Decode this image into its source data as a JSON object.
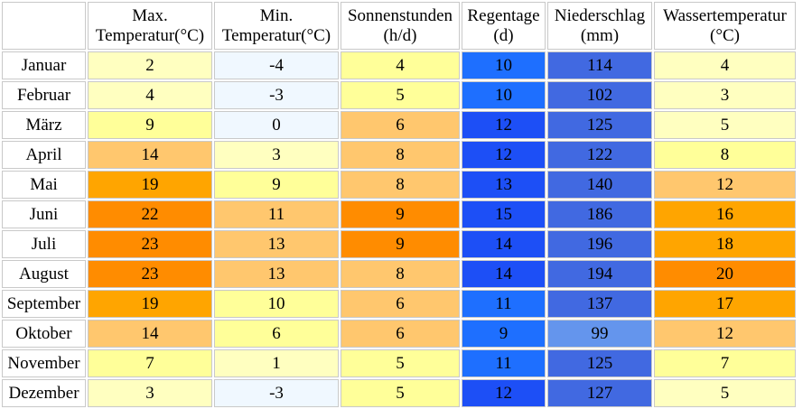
{
  "columns": [
    {
      "line1": "",
      "line2": ""
    },
    {
      "line1": "Max.",
      "line2": "Temperatur(°C)"
    },
    {
      "line1": "Min.",
      "line2": "Temperatur(°C)"
    },
    {
      "line1": "Sonnenstunden",
      "line2": "(h/d)"
    },
    {
      "line1": "Regentage",
      "line2": "(d)"
    },
    {
      "line1": "Niederschlag",
      "line2": "(mm)"
    },
    {
      "line1": "Wassertemperatur",
      "line2": "(°C)"
    }
  ],
  "rows": [
    {
      "month": "Januar",
      "cells": [
        {
          "value": "2",
          "color": "#ffffc0"
        },
        {
          "value": "-4",
          "color": "#f0f8ff"
        },
        {
          "value": "4",
          "color": "#ffff99"
        },
        {
          "value": "10",
          "color": "#1e6fff"
        },
        {
          "value": "114",
          "color": "#4169e1"
        },
        {
          "value": "4",
          "color": "#ffffc0"
        }
      ]
    },
    {
      "month": "Februar",
      "cells": [
        {
          "value": "4",
          "color": "#ffffc0"
        },
        {
          "value": "-3",
          "color": "#f0f8ff"
        },
        {
          "value": "5",
          "color": "#ffff99"
        },
        {
          "value": "10",
          "color": "#1e6fff"
        },
        {
          "value": "102",
          "color": "#4169e1"
        },
        {
          "value": "3",
          "color": "#ffffc0"
        }
      ]
    },
    {
      "month": "März",
      "cells": [
        {
          "value": "9",
          "color": "#ffff99"
        },
        {
          "value": "0",
          "color": "#f0f8ff"
        },
        {
          "value": "6",
          "color": "#ffc76e"
        },
        {
          "value": "12",
          "color": "#1d4ff6"
        },
        {
          "value": "125",
          "color": "#4169e1"
        },
        {
          "value": "5",
          "color": "#ffffc0"
        }
      ]
    },
    {
      "month": "April",
      "cells": [
        {
          "value": "14",
          "color": "#ffc76e"
        },
        {
          "value": "3",
          "color": "#ffffc0"
        },
        {
          "value": "8",
          "color": "#ffc76e"
        },
        {
          "value": "12",
          "color": "#1d4ff6"
        },
        {
          "value": "122",
          "color": "#4169e1"
        },
        {
          "value": "8",
          "color": "#ffff99"
        }
      ]
    },
    {
      "month": "Mai",
      "cells": [
        {
          "value": "19",
          "color": "#ffa500"
        },
        {
          "value": "9",
          "color": "#ffff99"
        },
        {
          "value": "8",
          "color": "#ffc76e"
        },
        {
          "value": "13",
          "color": "#1d4ff6"
        },
        {
          "value": "140",
          "color": "#4169e1"
        },
        {
          "value": "12",
          "color": "#ffc76e"
        }
      ]
    },
    {
      "month": "Juni",
      "cells": [
        {
          "value": "22",
          "color": "#ff8c00"
        },
        {
          "value": "11",
          "color": "#ffc76e"
        },
        {
          "value": "9",
          "color": "#ff8c00"
        },
        {
          "value": "15",
          "color": "#1d4ff6"
        },
        {
          "value": "186",
          "color": "#4169e1"
        },
        {
          "value": "16",
          "color": "#ffa500"
        }
      ]
    },
    {
      "month": "Juli",
      "cells": [
        {
          "value": "23",
          "color": "#ff8c00"
        },
        {
          "value": "13",
          "color": "#ffc76e"
        },
        {
          "value": "9",
          "color": "#ff8c00"
        },
        {
          "value": "14",
          "color": "#1d4ff6"
        },
        {
          "value": "196",
          "color": "#4169e1"
        },
        {
          "value": "18",
          "color": "#ffa500"
        }
      ]
    },
    {
      "month": "August",
      "cells": [
        {
          "value": "23",
          "color": "#ff8c00"
        },
        {
          "value": "13",
          "color": "#ffc76e"
        },
        {
          "value": "8",
          "color": "#ffc76e"
        },
        {
          "value": "14",
          "color": "#1d4ff6"
        },
        {
          "value": "194",
          "color": "#4169e1"
        },
        {
          "value": "20",
          "color": "#ff8c00"
        }
      ]
    },
    {
      "month": "September",
      "cells": [
        {
          "value": "19",
          "color": "#ffa500"
        },
        {
          "value": "10",
          "color": "#ffff99"
        },
        {
          "value": "6",
          "color": "#ffc76e"
        },
        {
          "value": "11",
          "color": "#1e6fff"
        },
        {
          "value": "137",
          "color": "#4169e1"
        },
        {
          "value": "17",
          "color": "#ffa500"
        }
      ]
    },
    {
      "month": "Oktober",
      "cells": [
        {
          "value": "14",
          "color": "#ffc76e"
        },
        {
          "value": "6",
          "color": "#ffff99"
        },
        {
          "value": "6",
          "color": "#ffc76e"
        },
        {
          "value": "9",
          "color": "#1e6fff"
        },
        {
          "value": "99",
          "color": "#6495ed"
        },
        {
          "value": "12",
          "color": "#ffc76e"
        }
      ]
    },
    {
      "month": "November",
      "cells": [
        {
          "value": "7",
          "color": "#ffff99"
        },
        {
          "value": "1",
          "color": "#ffffc0"
        },
        {
          "value": "5",
          "color": "#ffff99"
        },
        {
          "value": "11",
          "color": "#1e6fff"
        },
        {
          "value": "125",
          "color": "#4169e1"
        },
        {
          "value": "7",
          "color": "#ffff99"
        }
      ]
    },
    {
      "month": "Dezember",
      "cells": [
        {
          "value": "3",
          "color": "#ffffc0"
        },
        {
          "value": "-3",
          "color": "#f0f8ff"
        },
        {
          "value": "5",
          "color": "#ffff99"
        },
        {
          "value": "12",
          "color": "#1d4ff6"
        },
        {
          "value": "127",
          "color": "#4169e1"
        },
        {
          "value": "5",
          "color": "#ffffc0"
        }
      ]
    }
  ]
}
